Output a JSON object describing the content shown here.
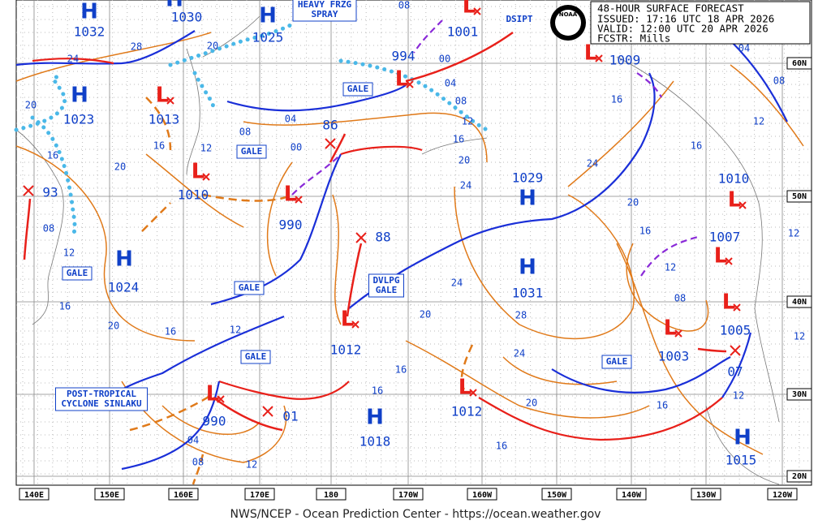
{
  "header": {
    "title": "48-HOUR SURFACE FORECAST",
    "issued": "ISSUED: 17:16 UTC 18 APR 2026",
    "valid": "VALID:  12:00 UTC 20 APR 2026",
    "forecaster": "FCSTR:  Mills"
  },
  "logo": "NOAA",
  "high_symbol": "H",
  "low_symbol": "L",
  "highs": [
    "1032",
    "1030",
    "1025",
    "1023",
    "1029",
    "1024",
    "1031",
    "1018",
    "1015"
  ],
  "lows": [
    "1001",
    "994",
    "1009",
    "1013",
    "1010",
    "990",
    "1012",
    "1012",
    "990",
    "1010",
    "1007",
    "1005",
    "1003"
  ],
  "remnant_lows": [
    "93",
    "86",
    "88",
    "01",
    "07"
  ],
  "labels": [
    [
      "GALE"
    ],
    [
      "GALE"
    ],
    [
      "GALE"
    ],
    [
      "GALE"
    ],
    [
      "GALE"
    ],
    [
      "GALE"
    ],
    [
      "HEAVY FRZG",
      "SPRAY"
    ],
    [
      "DVLPG",
      "GALE"
    ],
    [
      "POST-TROPICAL",
      "CYCLONE SINLAKU"
    ],
    [
      "DSIPT"
    ]
  ],
  "isobar_labels": [
    "24",
    "28",
    "20",
    "20",
    "16",
    "20",
    "16",
    "12",
    "08",
    "04",
    "00",
    "08",
    "00",
    "04",
    "08",
    "12",
    "16",
    "20",
    "24",
    "16",
    "24",
    "20",
    "16",
    "12",
    "08",
    "12",
    "08",
    "04",
    "16",
    "12",
    "12",
    "12",
    "16",
    "20",
    "16",
    "24",
    "28",
    "24",
    "20",
    "16",
    "16",
    "12",
    "16",
    "20",
    "16",
    "12",
    "08",
    "04",
    "08",
    "12"
  ],
  "longitudes": [
    "140E",
    "150E",
    "160E",
    "170E",
    "180",
    "170W",
    "160W",
    "150W",
    "140W",
    "130W",
    "120W"
  ],
  "latitudes": [
    "60N",
    "50N",
    "40N",
    "30N",
    "20N"
  ],
  "footer": "NWS/NCEP - Ocean Prediction Center - https://ocean.weather.gov"
}
